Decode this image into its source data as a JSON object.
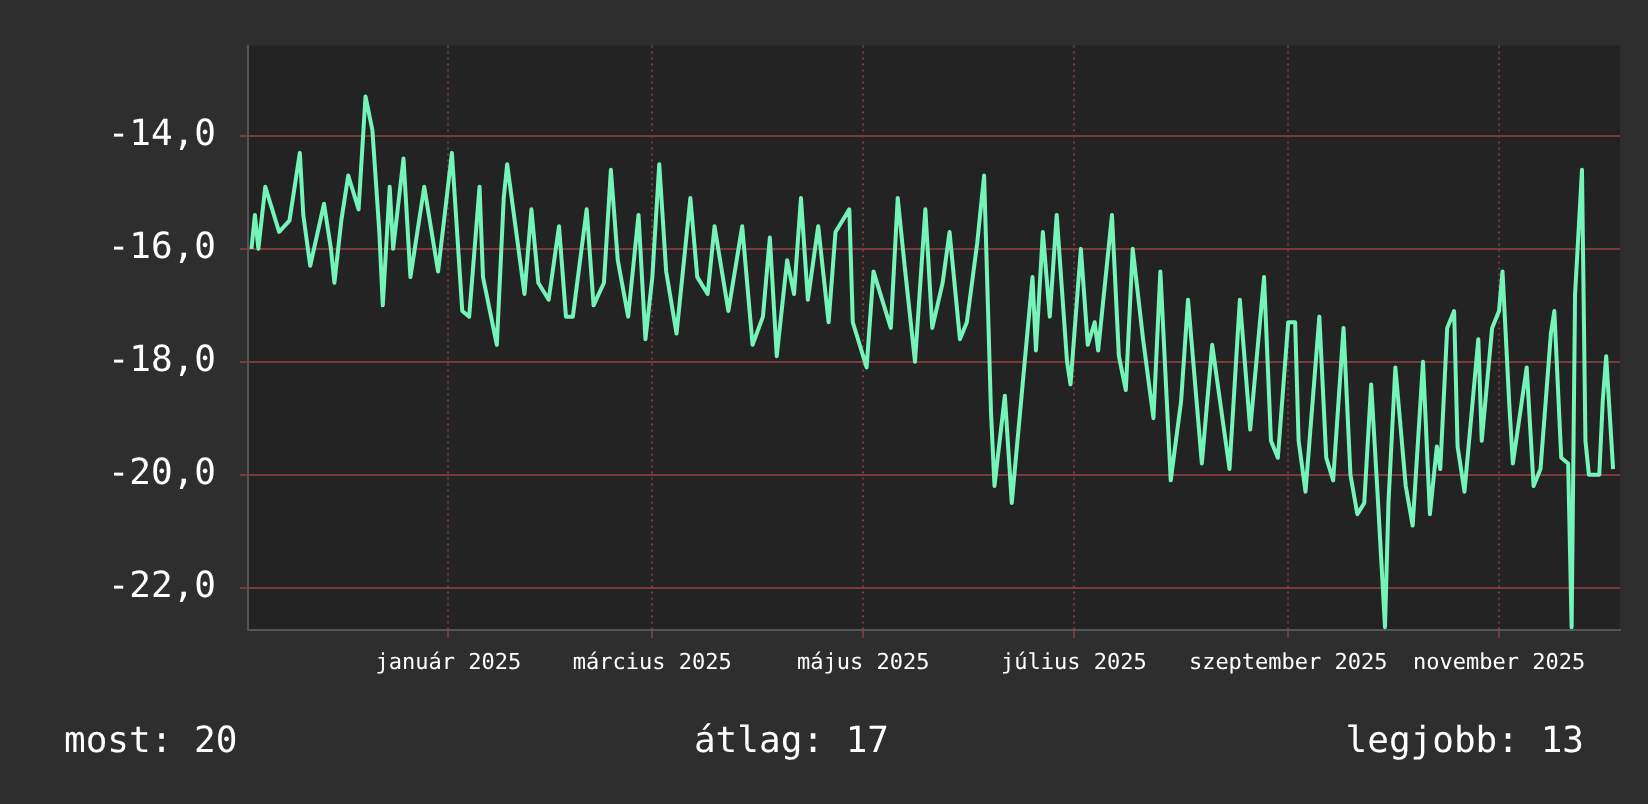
{
  "chart_data": {
    "type": "line",
    "x": [
      "2024-11-05",
      "2024-11-06",
      "2024-11-07",
      "2024-11-09",
      "2024-11-11",
      "2024-11-13",
      "2024-11-16",
      "2024-11-19",
      "2024-11-20",
      "2024-11-22",
      "2024-11-26",
      "2024-11-28",
      "2024-11-29",
      "2024-12-01",
      "2024-12-03",
      "2024-12-06",
      "2024-12-08",
      "2024-12-10",
      "2024-12-12",
      "2024-12-13",
      "2024-12-15",
      "2024-12-16",
      "2024-12-19",
      "2024-12-21",
      "2024-12-25",
      "2024-12-29",
      "2025-01-02",
      "2025-01-05",
      "2025-01-07",
      "2025-01-10",
      "2025-01-11",
      "2025-01-15",
      "2025-01-17",
      "2025-01-18",
      "2025-01-23",
      "2025-01-25",
      "2025-01-27",
      "2025-01-30",
      "2025-02-02",
      "2025-02-04",
      "2025-02-06",
      "2025-02-10",
      "2025-02-12",
      "2025-02-15",
      "2025-02-17",
      "2025-02-19",
      "2025-02-22",
      "2025-02-25",
      "2025-02-27",
      "2025-03-01",
      "2025-03-03",
      "2025-03-05",
      "2025-03-08",
      "2025-03-12",
      "2025-03-14",
      "2025-03-17",
      "2025-03-19",
      "2025-03-23",
      "2025-03-27",
      "2025-03-30",
      "2025-04-02",
      "2025-04-04",
      "2025-04-06",
      "2025-04-09",
      "2025-04-11",
      "2025-04-13",
      "2025-04-15",
      "2025-04-18",
      "2025-04-21",
      "2025-04-23",
      "2025-04-27",
      "2025-04-28",
      "2025-05-02",
      "2025-05-04",
      "2025-05-06",
      "2025-05-09",
      "2025-05-11",
      "2025-05-13",
      "2025-05-16",
      "2025-05-19",
      "2025-05-21",
      "2025-05-24",
      "2025-05-26",
      "2025-05-29",
      "2025-05-31",
      "2025-06-03",
      "2025-06-05",
      "2025-06-07",
      "2025-06-08",
      "2025-06-11",
      "2025-06-13",
      "2025-06-16",
      "2025-06-19",
      "2025-06-20",
      "2025-06-22",
      "2025-06-24",
      "2025-06-26",
      "2025-06-29",
      "2025-06-30",
      "2025-07-03",
      "2025-07-05",
      "2025-07-07",
      "2025-07-08",
      "2025-07-12",
      "2025-07-14",
      "2025-07-16",
      "2025-07-18",
      "2025-07-21",
      "2025-07-24",
      "2025-07-26",
      "2025-07-29",
      "2025-08-01",
      "2025-08-03",
      "2025-08-07",
      "2025-08-10",
      "2025-08-15",
      "2025-08-18",
      "2025-08-21",
      "2025-08-25",
      "2025-08-27",
      "2025-08-29",
      "2025-09-01",
      "2025-09-03",
      "2025-09-04",
      "2025-09-06",
      "2025-09-10",
      "2025-09-12",
      "2025-09-14",
      "2025-09-17",
      "2025-09-19",
      "2025-09-21",
      "2025-09-23",
      "2025-09-25",
      "2025-09-27",
      "2025-09-29",
      "2025-09-30",
      "2025-10-02",
      "2025-10-05",
      "2025-10-07",
      "2025-10-10",
      "2025-10-12",
      "2025-10-14",
      "2025-10-15",
      "2025-10-17",
      "2025-10-19",
      "2025-10-20",
      "2025-10-22",
      "2025-10-26",
      "2025-10-27",
      "2025-10-30",
      "2025-11-01",
      "2025-11-02",
      "2025-11-04",
      "2025-11-05",
      "2025-11-09",
      "2025-11-11",
      "2025-11-13",
      "2025-11-16",
      "2025-11-17",
      "2025-11-19",
      "2025-11-21",
      "2025-11-22",
      "2025-11-23",
      "2025-11-25",
      "2025-11-26",
      "2025-11-27",
      "2025-11-30",
      "2025-12-01",
      "2025-12-02",
      "2025-12-04"
    ],
    "values": [
      -16.0,
      -15.4,
      -16.0,
      -14.9,
      -15.3,
      -15.7,
      -15.5,
      -14.3,
      -15.4,
      -16.3,
      -15.2,
      -16.0,
      -16.6,
      -15.5,
      -14.7,
      -15.3,
      -13.3,
      -13.9,
      -15.7,
      -17.0,
      -14.9,
      -16.0,
      -14.4,
      -16.5,
      -14.9,
      -16.4,
      -14.3,
      -17.1,
      -17.2,
      -14.9,
      -16.5,
      -17.7,
      -15.1,
      -14.5,
      -16.8,
      -15.3,
      -16.6,
      -16.9,
      -15.6,
      -17.2,
      -17.2,
      -15.3,
      -17.0,
      -16.6,
      -14.6,
      -16.2,
      -17.2,
      -15.4,
      -17.6,
      -16.5,
      -14.5,
      -16.4,
      -17.5,
      -15.1,
      -16.5,
      -16.8,
      -15.6,
      -17.1,
      -15.6,
      -17.7,
      -17.2,
      -15.8,
      -17.9,
      -16.2,
      -16.8,
      -15.1,
      -16.9,
      -15.6,
      -17.3,
      -15.7,
      -15.3,
      -17.3,
      -18.1,
      -16.4,
      -16.8,
      -17.4,
      -15.1,
      -16.3,
      -18.0,
      -15.3,
      -17.4,
      -16.6,
      -15.7,
      -17.6,
      -17.3,
      -15.9,
      -14.7,
      -18.9,
      -20.2,
      -18.6,
      -20.5,
      -18.5,
      -16.5,
      -17.8,
      -15.7,
      -17.2,
      -15.4,
      -18.0,
      -18.4,
      -16.0,
      -17.7,
      -17.3,
      -17.8,
      -15.4,
      -17.9,
      -18.5,
      -16.0,
      -17.6,
      -19.0,
      -16.4,
      -20.1,
      -18.7,
      -16.9,
      -19.8,
      -17.7,
      -19.9,
      -16.9,
      -19.2,
      -16.5,
      -19.4,
      -19.7,
      -17.3,
      -17.3,
      -19.4,
      -20.3,
      -17.2,
      -19.7,
      -20.1,
      -17.4,
      -20.0,
      -20.7,
      -20.5,
      -18.4,
      -20.5,
      -22.7,
      -20.5,
      -18.1,
      -20.2,
      -20.9,
      -18.0,
      -20.7,
      -19.5,
      -19.9,
      -17.4,
      -17.1,
      -19.5,
      -20.3,
      -17.6,
      -19.4,
      -17.4,
      -17.1,
      -16.4,
      -18.8,
      -19.8,
      -18.1,
      -20.2,
      -19.9,
      -17.5,
      -17.1,
      -19.7,
      -19.8,
      -22.7,
      -16.8,
      -14.6,
      -19.4,
      -20.0,
      -20.0,
      -18.7,
      -17.9,
      -19.9
    ],
    "color": "#74f4b8",
    "marker": "none",
    "grid": true,
    "xlim": [
      "2024-11-04",
      "2025-12-06"
    ],
    "xticks": [
      {
        "value": "2025-01-01",
        "label": "január 2025"
      },
      {
        "value": "2025-03-01",
        "label": "március 2025"
      },
      {
        "value": "2025-05-01",
        "label": "május 2025"
      },
      {
        "value": "2025-07-01",
        "label": "július 2025"
      },
      {
        "value": "2025-09-01",
        "label": "szeptember 2025"
      },
      {
        "value": "2025-11-01",
        "label": "november 2025"
      }
    ],
    "ylim": [
      -22.75,
      -12.4
    ],
    "yticks": [
      {
        "value": -22,
        "label": "-22,0"
      },
      {
        "value": -20,
        "label": "-20,0"
      },
      {
        "value": -18,
        "label": "-18,0"
      },
      {
        "value": -16,
        "label": "-16,0"
      },
      {
        "value": -14,
        "label": "-14,0"
      }
    ],
    "annotations": [
      "most: 20",
      "átlag: 17",
      "legjobb: 13"
    ]
  }
}
